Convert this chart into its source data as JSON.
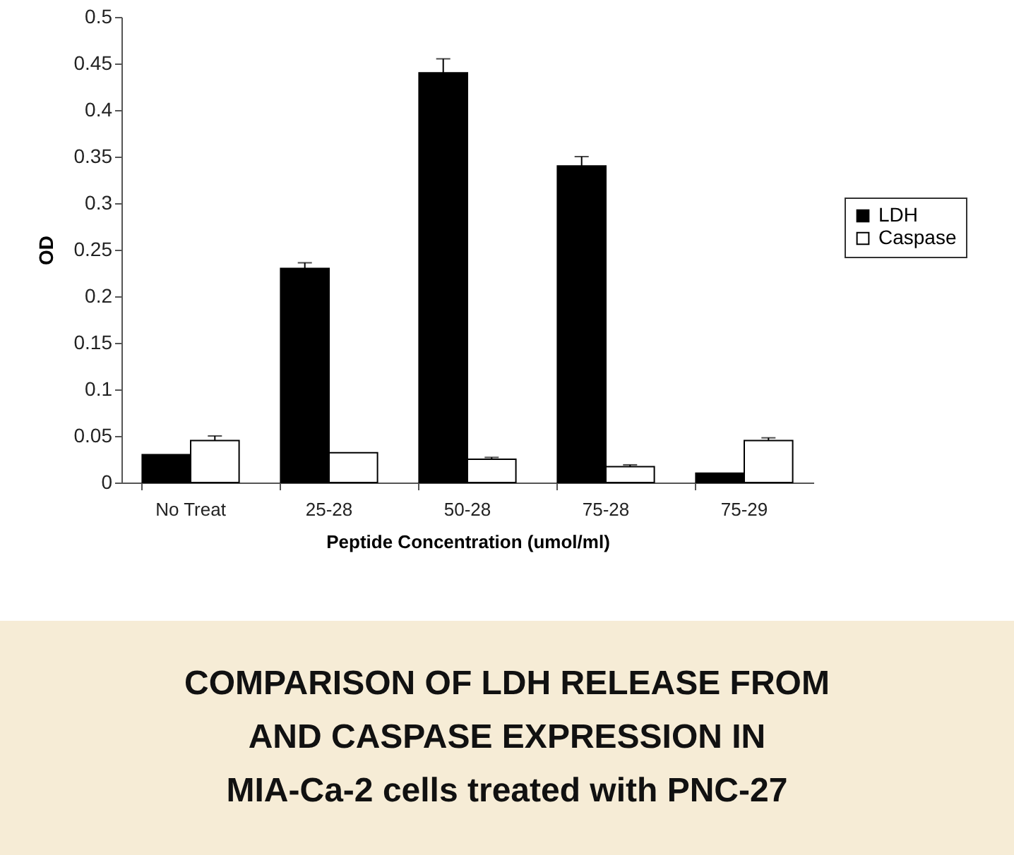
{
  "chart_data": {
    "type": "bar",
    "title": "COMPARISON OF LDH RELEASE FROM\nAND CASPASE EXPRESSION IN\nMIA-Ca-2 cells treated with PNC-27",
    "xlabel": "Peptide Concentration (umol/ml)",
    "ylabel": "OD",
    "categories": [
      "No Treat",
      "25-28",
      "50-28",
      "75-28",
      "75-29"
    ],
    "series": [
      {
        "name": "LDH",
        "color": "#000000",
        "values": [
          0.03,
          0.23,
          0.44,
          0.34,
          0.01
        ],
        "errors": [
          null,
          [
            0.23,
            0.236
          ],
          [
            0.44,
            0.455
          ],
          [
            0.34,
            0.35
          ],
          null
        ]
      },
      {
        "name": "Caspase",
        "color": "#ffffff",
        "values": [
          0.045,
          0.032,
          0.025,
          0.017,
          0.045
        ],
        "errors": [
          [
            0.045,
            0.05
          ],
          null,
          [
            0.025,
            0.027
          ],
          [
            0.017,
            0.019
          ],
          [
            0.045,
            0.048
          ]
        ]
      }
    ],
    "ylim": [
      0,
      0.5
    ],
    "yticks": [
      0,
      0.05,
      0.1,
      0.15,
      0.2,
      0.25,
      0.3,
      0.35,
      0.4,
      0.45,
      0.5
    ],
    "grid": false,
    "legend": "right"
  }
}
